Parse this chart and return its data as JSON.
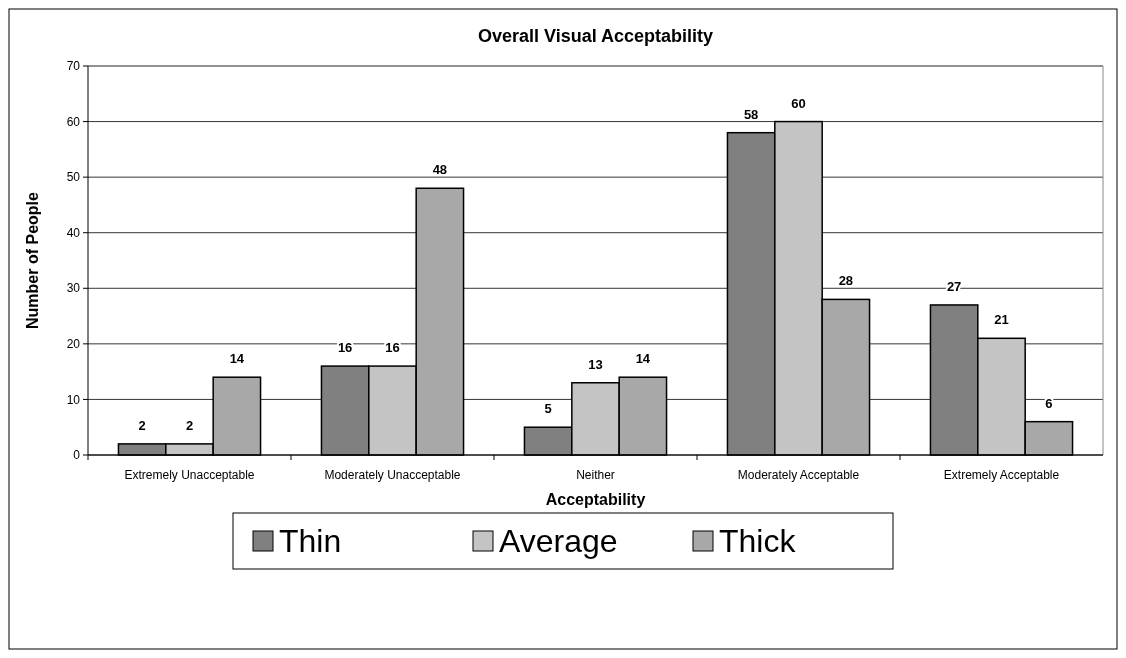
{
  "chart_data": {
    "type": "bar",
    "title": "Overall Visual Acceptability",
    "xlabel": "Acceptability",
    "ylabel": "Number of People",
    "categories": [
      "Extremely Unacceptable",
      "Moderately Unacceptable",
      "Neither",
      "Moderately Acceptable",
      "Extremely Acceptable"
    ],
    "series": [
      {
        "name": "Thin",
        "color": "#808080",
        "values": [
          2,
          16,
          5,
          58,
          27
        ]
      },
      {
        "name": "Average",
        "color": "#c4c4c4",
        "values": [
          2,
          16,
          13,
          60,
          21
        ]
      },
      {
        "name": "Thick",
        "color": "#a8a8a8",
        "values": [
          14,
          48,
          14,
          28,
          6
        ]
      }
    ],
    "ylim": [
      0,
      70
    ],
    "yticks": [
      0,
      10,
      20,
      30,
      40,
      50,
      60,
      70
    ],
    "grid": "y",
    "legend": "bottom",
    "data_labels": true
  }
}
